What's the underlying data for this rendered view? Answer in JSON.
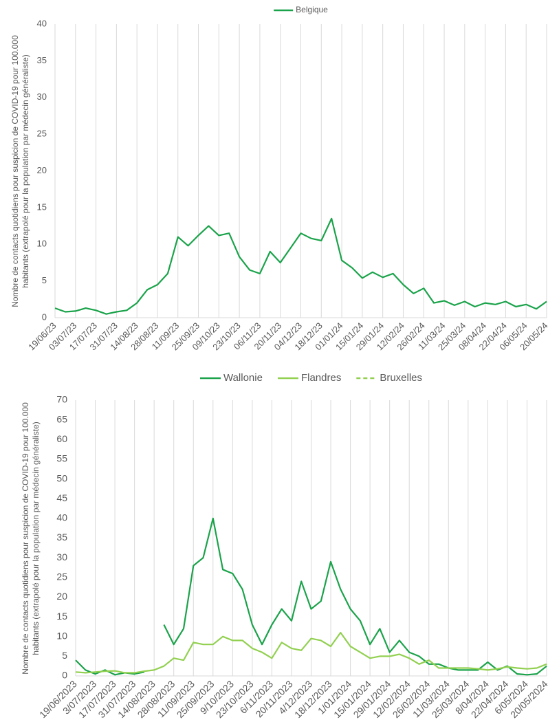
{
  "chart_data": [
    {
      "type": "line",
      "legend": "top",
      "grid": true,
      "ylabel": "Nombre de contacts quotidiens pour suspicion de COVID-19 pour 100.000 habitants (extrapolé pour la population par médecin généraliste)",
      "categories": [
        "19/06/23",
        null,
        "03/07/23",
        null,
        "17/07/23",
        null,
        "31/07/23",
        null,
        "14/08/23",
        null,
        "28/08/23",
        null,
        "11/09/23",
        null,
        "25/09/23",
        null,
        "09/10/23",
        null,
        "23/10/23",
        null,
        "06/11/23",
        null,
        "20/11/23",
        null,
        "04/12/23",
        null,
        "18/12/23",
        null,
        "01/01/24",
        null,
        "15/01/24",
        null,
        "29/01/24",
        null,
        "12/02/24",
        null,
        "26/02/24",
        null,
        "11/03/24",
        null,
        "25/03/24",
        null,
        "08/04/24",
        null,
        "22/04/24",
        null,
        "06/05/24",
        null,
        "20/05/24"
      ],
      "series": [
        {
          "name": "Belgique",
          "color": "#1aa34a",
          "values": [
            1.3,
            0.8,
            0.9,
            1.3,
            1.0,
            0.5,
            0.8,
            1.0,
            2.0,
            3.8,
            4.5,
            6.0,
            11.0,
            9.8,
            11.2,
            12.5,
            11.2,
            11.5,
            8.3,
            6.5,
            6.0,
            9.0,
            7.5,
            9.5,
            11.5,
            10.8,
            10.5,
            13.5,
            7.8,
            6.8,
            5.4,
            6.2,
            5.5,
            6.0,
            4.5,
            3.3,
            4.0,
            2.0,
            2.3,
            1.7,
            2.2,
            1.5,
            2.0,
            1.8,
            2.2,
            1.5,
            1.8,
            1.2,
            2.2
          ]
        }
      ],
      "ylim": [
        0,
        40
      ],
      "yticks": [
        0,
        5,
        10,
        15,
        20,
        25,
        30,
        35,
        40
      ]
    },
    {
      "type": "line",
      "legend": "top",
      "grid": true,
      "ylabel": "Nombre de contacts quotidiens pour suspicion de COVID-19 pour 100.000 habitants (extrapolé pour la population par médecin généraliste)",
      "categories": [
        "19/06/2023",
        null,
        "3/07/2023",
        null,
        "17/07/2023",
        null,
        "31/07/2023",
        null,
        "14/08/2023",
        null,
        "28/08/2023",
        null,
        "11/09/2023",
        null,
        "25/09/2023",
        null,
        "9/10/2023",
        null,
        "23/10/2023",
        null,
        "6/11/2023",
        null,
        "20/11/2023",
        null,
        "4/12/2023",
        null,
        "18/12/2023",
        null,
        "1/01/2024",
        null,
        "15/01/2024",
        null,
        "29/01/2024",
        null,
        "12/02/2024",
        null,
        "26/02/2024",
        null,
        "11/03/2024",
        null,
        "25/03/2024",
        null,
        "8/04/2024",
        null,
        "22/04/2024",
        null,
        "6/05/2024",
        null,
        "20/05/2024"
      ],
      "series": [
        {
          "name": "Wallonie",
          "color": "#1aa34a",
          "values": [
            4,
            1.5,
            0.5,
            1.5,
            0.3,
            0.8,
            0.5,
            1.0,
            null,
            13,
            8,
            12,
            28,
            30,
            40,
            27,
            26,
            22,
            13,
            8,
            13,
            17,
            14,
            24,
            17,
            19,
            29,
            22,
            17,
            14,
            8,
            12,
            6,
            9,
            6,
            5,
            3,
            3,
            2,
            1.5,
            1.5,
            1.5,
            3.5,
            1.5,
            2.5,
            0.5,
            0.3,
            0.5,
            2.5
          ]
        },
        {
          "name": "Flandres",
          "color": "#92d050",
          "values": [
            1,
            0.8,
            1,
            1.2,
            1.3,
            0.8,
            0.8,
            1.2,
            1.5,
            2.5,
            4.5,
            4,
            8.5,
            8,
            8,
            10,
            9,
            9,
            7,
            6,
            4.5,
            8.5,
            7,
            6.5,
            9.5,
            9,
            7.5,
            11,
            7.5,
            6,
            4.5,
            5,
            5,
            5.5,
            4.5,
            3,
            4,
            2,
            2,
            2,
            2,
            1.8,
            1.5,
            1.8,
            2.3,
            2,
            1.8,
            2,
            3
          ]
        },
        {
          "name": "Bruxelles",
          "color": "#92d050",
          "dashed": true,
          "values": [
            null,
            null,
            null,
            null,
            null,
            null,
            null,
            null,
            null,
            null,
            null,
            null,
            null,
            null,
            null,
            null,
            null,
            null,
            null,
            null,
            null,
            null,
            null,
            null,
            null,
            null,
            null,
            null,
            null,
            null,
            null,
            null,
            null,
            null,
            null,
            null,
            null,
            null,
            null,
            null,
            null,
            null,
            null,
            null,
            null,
            null,
            null,
            null,
            null
          ]
        }
      ],
      "ylim": [
        0,
        70
      ],
      "yticks": [
        0,
        5,
        10,
        15,
        20,
        25,
        30,
        35,
        40,
        45,
        50,
        55,
        60,
        65,
        70
      ]
    }
  ]
}
